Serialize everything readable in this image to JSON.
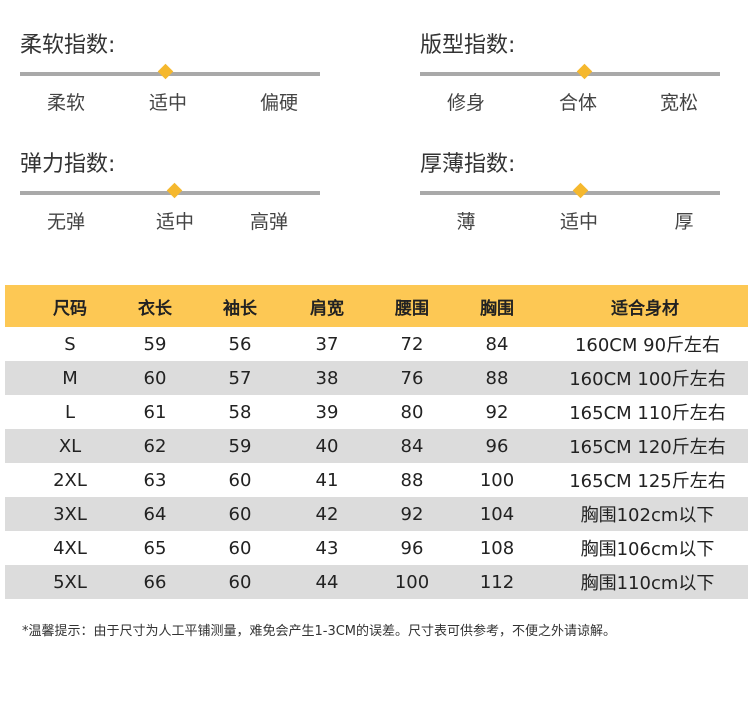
{
  "scales": [
    {
      "title": "柔软指数:",
      "labels": [
        "柔软",
        "适中",
        "偏硬"
      ],
      "level": 0.5
    },
    {
      "title": "版型指数:",
      "labels": [
        "修身",
        "合体",
        "宽松"
      ],
      "level": 0.5
    },
    {
      "title": "弹力指数:",
      "labels": [
        "无弹",
        "适中",
        "高弹"
      ],
      "level": 0.5
    },
    {
      "title": "厚薄指数:",
      "labels": [
        "薄",
        "适中",
        "厚"
      ],
      "level": 0.5
    }
  ],
  "accent_color": "#fdc854",
  "marker_color": "#f5b82e",
  "table": {
    "headers": [
      "尺码",
      "衣长",
      "袖长",
      "肩宽",
      "腰围",
      "胸围",
      "适合身材"
    ],
    "rows": [
      [
        "S",
        "59",
        "56",
        "37",
        "72",
        "84",
        "160CM  90斤左右"
      ],
      [
        "M",
        "60",
        "57",
        "38",
        "76",
        "88",
        "160CM  100斤左右"
      ],
      [
        "L",
        "61",
        "58",
        "39",
        "80",
        "92",
        "165CM  110斤左右"
      ],
      [
        "XL",
        "62",
        "59",
        "40",
        "84",
        "96",
        "165CM  120斤左右"
      ],
      [
        "2XL",
        "63",
        "60",
        "41",
        "88",
        "100",
        "165CM 125斤左右"
      ],
      [
        "3XL",
        "64",
        "60",
        "42",
        "92",
        "104",
        "胸围102cm以下"
      ],
      [
        "4XL",
        "65",
        "60",
        "43",
        "96",
        "108",
        "胸围106cm以下"
      ],
      [
        "5XL",
        "66",
        "60",
        "44",
        "100",
        "112",
        "胸围110cm以下"
      ]
    ]
  },
  "note": "*温馨提示：由于尺寸为人工平铺测量，难免会产生1-3CM的误差。尺寸表可供参考，不便之外请谅解。"
}
